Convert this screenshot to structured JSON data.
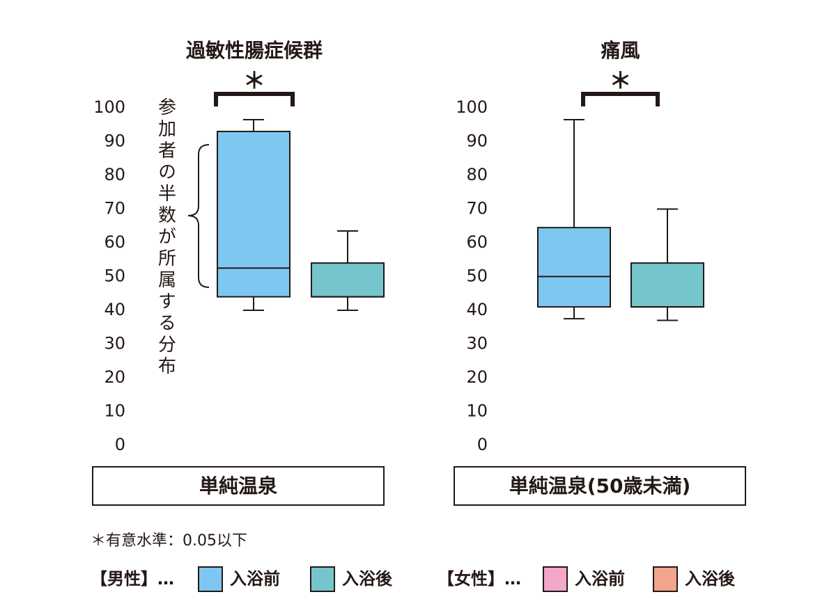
{
  "chart_data": [
    {
      "type": "box",
      "title": "過敏性腸症候群",
      "significance": "＊",
      "annotation": "参加者の半数が所属する分布",
      "category": "単純温泉",
      "ylim": [
        0,
        100
      ],
      "yticks": [
        0,
        10,
        20,
        30,
        40,
        50,
        60,
        70,
        80,
        90,
        100
      ],
      "boxes": [
        {
          "color": "#7dc8f0",
          "min": 40,
          "q1": 44,
          "median": 52.5,
          "q3": 93,
          "max": 96.5
        },
        {
          "color": "#74c6cc",
          "min": 40,
          "q1": 44,
          "median": 44,
          "q3": 54,
          "max": 63.5
        }
      ]
    },
    {
      "type": "box",
      "title": "痛風",
      "significance": "＊",
      "category": "単純温泉(50歳未満)",
      "ylim": [
        0,
        100
      ],
      "yticks": [
        0,
        10,
        20,
        30,
        40,
        50,
        60,
        70,
        80,
        90,
        100
      ],
      "boxes": [
        {
          "color": "#7dc8f0",
          "min": 37.5,
          "q1": 41,
          "median": 50,
          "q3": 64.5,
          "max": 96.5
        },
        {
          "color": "#74c6cc",
          "min": 37,
          "q1": 41,
          "median": 41,
          "q3": 54,
          "max": 70
        }
      ]
    }
  ],
  "footnote": "＊有意水準：0.05以下",
  "legend": [
    {
      "label": "【男性】…",
      "items": [
        {
          "name": "入浴前",
          "color": "#7dc8f0"
        },
        {
          "name": "入浴後",
          "color": "#74c6cc"
        }
      ]
    },
    {
      "label": "【女性】…",
      "items": [
        {
          "name": "入浴前",
          "color": "#f3a7c9"
        },
        {
          "name": "入浴後",
          "color": "#f2a48c"
        }
      ]
    }
  ]
}
